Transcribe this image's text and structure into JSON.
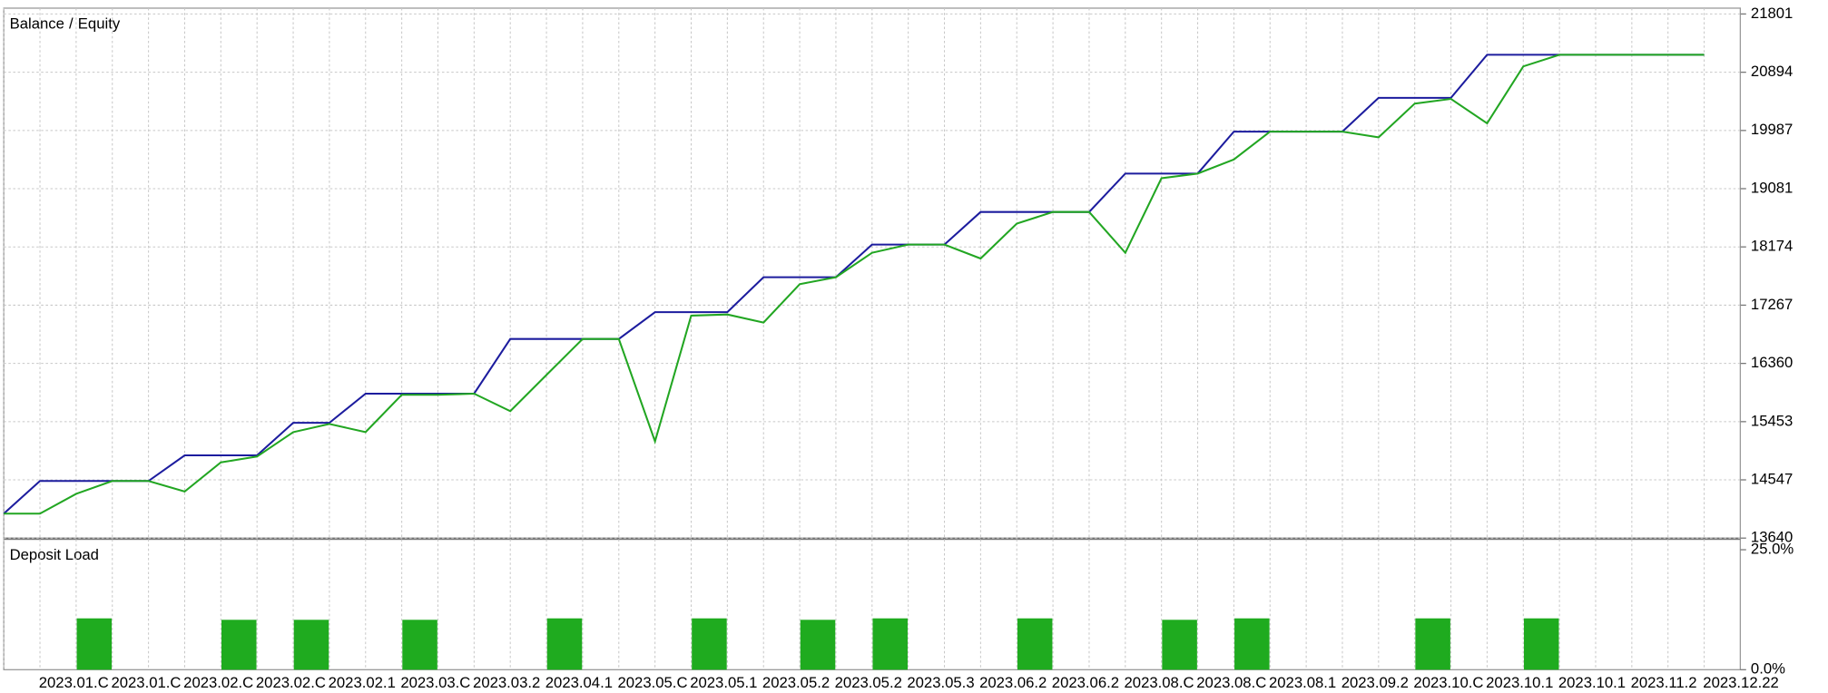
{
  "chart_data": [
    {
      "type": "line",
      "legend_separator": "/",
      "categories": [
        null,
        "2023.01.C",
        null,
        "2023.01.C",
        null,
        "2023.02.C",
        null,
        "2023.02.C",
        null,
        "2023.02.1",
        null,
        "2023.03.C",
        null,
        "2023.03.2",
        null,
        "2023.04.1",
        null,
        "2023.05.C",
        null,
        "2023.05.1",
        null,
        "2023.05.2",
        null,
        "2023.05.2",
        null,
        "2023.05.3",
        null,
        "2023.06.2",
        null,
        "2023.06.2",
        null,
        "2023.08.C",
        null,
        "2023.08.C",
        null,
        "2023.08.1",
        null,
        "2023.09.2",
        null,
        "2023.10.C",
        null,
        "2023.10.1",
        null,
        "2023.10.1",
        null,
        "2023.11.2",
        null,
        "2023.12.22"
      ],
      "series": [
        {
          "name": "Balance",
          "color": "#1c1c9e",
          "values": [
            14021,
            14529,
            14529,
            14529,
            14529,
            14928,
            14928,
            14928,
            15435,
            15435,
            15889,
            15889,
            15889,
            15889,
            16741,
            16741,
            16741,
            16741,
            17158,
            17158,
            17158,
            17702,
            17702,
            17702,
            18210,
            18210,
            18210,
            18718,
            18718,
            18718,
            18718,
            19316,
            19316,
            19316,
            19969,
            19969,
            19969,
            19969,
            20495,
            20495,
            20495,
            21166,
            21166,
            21166,
            21166,
            21166,
            21166,
            21166
          ]
        },
        {
          "name": "Equity",
          "color": "#22a622",
          "values": [
            14021,
            14021,
            14329,
            14529,
            14529,
            14365,
            14819,
            14910,
            15290,
            15417,
            15290,
            15871,
            15871,
            15889,
            15617,
            16180,
            16741,
            16741,
            15146,
            17104,
            17122,
            16996,
            17594,
            17702,
            18083,
            18210,
            18210,
            17993,
            18537,
            18718,
            18718,
            18083,
            19244,
            19316,
            19535,
            19969,
            19969,
            19969,
            19880,
            20406,
            20479,
            20098,
            20985,
            21166,
            21166,
            21166,
            21166,
            21166
          ]
        }
      ],
      "ylim": [
        13640,
        21801
      ],
      "yticks": [
        13640,
        14547,
        15453,
        16360,
        17267,
        18174,
        19081,
        19987,
        20894,
        21801
      ],
      "grid": true
    },
    {
      "type": "bar",
      "title": "Deposit Load",
      "color": "#1fab1f",
      "values": [
        null,
        null,
        10.7,
        null,
        null,
        null,
        10.4,
        null,
        10.4,
        null,
        null,
        10.4,
        null,
        null,
        null,
        10.7,
        null,
        null,
        null,
        10.7,
        null,
        null,
        10.4,
        null,
        10.7,
        null,
        null,
        null,
        10.7,
        null,
        null,
        null,
        10.4,
        null,
        10.7,
        null,
        null,
        null,
        null,
        10.7,
        null,
        null,
        10.7,
        null,
        null,
        null,
        null,
        null
      ],
      "ylim": [
        0,
        25
      ],
      "yticks": [
        {
          "value": 0,
          "label": "0.0%"
        },
        {
          "value": 25,
          "label": "25.0%"
        }
      ]
    }
  ]
}
